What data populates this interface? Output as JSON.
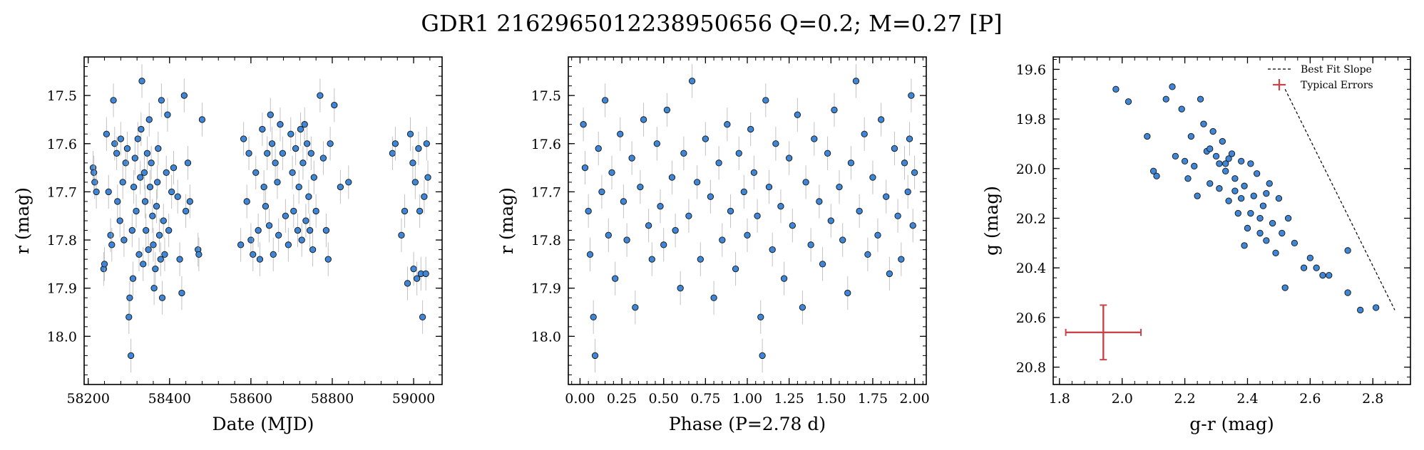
{
  "title": "GDR1 2162965012238950656  Q=0.2; M=0.27 [P]",
  "colors": {
    "point": "#3f87d6",
    "point_edge": "#111111",
    "errorbar": "#a9a9a9",
    "typical": "#c9434a",
    "slope": "#000000"
  },
  "chart_data": [
    {
      "type": "scatter",
      "panel": "light-curve",
      "xlabel": "Date (MJD)",
      "ylabel": "r (mag)",
      "xlim": [
        58190,
        59070
      ],
      "ylim": [
        18.1,
        17.42
      ],
      "y_inverted": true,
      "xticks": [
        "58200",
        "58400",
        "58600",
        "58800",
        "59000"
      ],
      "yticks": [
        "17.5",
        "17.6",
        "17.7",
        "17.8",
        "17.9",
        "18.0"
      ],
      "y_error": 0.035,
      "points": [
        [
          58212,
          17.65
        ],
        [
          58214,
          17.66
        ],
        [
          58216,
          17.68
        ],
        [
          58220,
          17.7
        ],
        [
          58238,
          17.86
        ],
        [
          58240,
          17.85
        ],
        [
          58245,
          17.58
        ],
        [
          58250,
          17.7
        ],
        [
          58255,
          17.79
        ],
        [
          58258,
          17.81
        ],
        [
          58262,
          17.51
        ],
        [
          58265,
          17.6
        ],
        [
          58270,
          17.62
        ],
        [
          58272,
          17.72
        ],
        [
          58278,
          17.76
        ],
        [
          58280,
          17.59
        ],
        [
          58285,
          17.68
        ],
        [
          58288,
          17.8
        ],
        [
          58292,
          17.64
        ],
        [
          58296,
          17.61
        ],
        [
          58300,
          17.96
        ],
        [
          58302,
          17.92
        ],
        [
          58305,
          18.04
        ],
        [
          58308,
          17.78
        ],
        [
          58310,
          17.88
        ],
        [
          58312,
          17.69
        ],
        [
          58315,
          17.63
        ],
        [
          58318,
          17.74
        ],
        [
          58322,
          17.59
        ],
        [
          58325,
          17.83
        ],
        [
          58328,
          17.67
        ],
        [
          58330,
          17.57
        ],
        [
          58332,
          17.47
        ],
        [
          58335,
          17.85
        ],
        [
          58338,
          17.66
        ],
        [
          58340,
          17.72
        ],
        [
          58342,
          17.78
        ],
        [
          58345,
          17.62
        ],
        [
          58348,
          17.82
        ],
        [
          58350,
          17.55
        ],
        [
          58352,
          17.69
        ],
        [
          58355,
          17.64
        ],
        [
          58358,
          17.75
        ],
        [
          58360,
          17.81
        ],
        [
          58362,
          17.9
        ],
        [
          58365,
          17.86
        ],
        [
          58368,
          17.73
        ],
        [
          58370,
          17.68
        ],
        [
          58372,
          17.61
        ],
        [
          58375,
          17.79
        ],
        [
          58378,
          17.84
        ],
        [
          58380,
          17.51
        ],
        [
          58382,
          17.92
        ],
        [
          58385,
          17.76
        ],
        [
          58388,
          17.83
        ],
        [
          58392,
          17.66
        ],
        [
          58395,
          17.54
        ],
        [
          58398,
          17.78
        ],
        [
          58405,
          17.7
        ],
        [
          58410,
          17.65
        ],
        [
          58420,
          17.71
        ],
        [
          58425,
          17.84
        ],
        [
          58430,
          17.91
        ],
        [
          58436,
          17.5
        ],
        [
          58440,
          17.74
        ],
        [
          58445,
          17.64
        ],
        [
          58450,
          17.72
        ],
        [
          58470,
          17.82
        ],
        [
          58472,
          17.83
        ],
        [
          58480,
          17.55
        ],
        [
          58575,
          17.81
        ],
        [
          58582,
          17.59
        ],
        [
          58590,
          17.72
        ],
        [
          58595,
          17.62
        ],
        [
          58600,
          17.8
        ],
        [
          58605,
          17.83
        ],
        [
          58612,
          17.66
        ],
        [
          58618,
          17.78
        ],
        [
          58622,
          17.84
        ],
        [
          58628,
          17.57
        ],
        [
          58632,
          17.69
        ],
        [
          58636,
          17.73
        ],
        [
          58640,
          17.62
        ],
        [
          58645,
          17.77
        ],
        [
          58648,
          17.54
        ],
        [
          58652,
          17.6
        ],
        [
          58655,
          17.83
        ],
        [
          58660,
          17.64
        ],
        [
          58665,
          17.68
        ],
        [
          58668,
          17.79
        ],
        [
          58672,
          17.56
        ],
        [
          58678,
          17.62
        ],
        [
          58685,
          17.75
        ],
        [
          58692,
          17.81
        ],
        [
          58698,
          17.58
        ],
        [
          58702,
          17.66
        ],
        [
          58705,
          17.74
        ],
        [
          58710,
          17.61
        ],
        [
          58715,
          17.78
        ],
        [
          58718,
          17.69
        ],
        [
          58722,
          17.57
        ],
        [
          58725,
          17.8
        ],
        [
          58728,
          17.64
        ],
        [
          58732,
          17.56
        ],
        [
          58735,
          17.76
        ],
        [
          58738,
          17.6
        ],
        [
          58742,
          17.71
        ],
        [
          58745,
          17.78
        ],
        [
          58748,
          17.62
        ],
        [
          58752,
          17.82
        ],
        [
          58755,
          17.67
        ],
        [
          58760,
          17.74
        ],
        [
          58770,
          17.5
        ],
        [
          58778,
          17.63
        ],
        [
          58785,
          17.78
        ],
        [
          58790,
          17.84
        ],
        [
          58795,
          17.6
        ],
        [
          58805,
          17.52
        ],
        [
          58820,
          17.69
        ],
        [
          58840,
          17.68
        ],
        [
          58948,
          17.62
        ],
        [
          58955,
          17.6
        ],
        [
          58970,
          17.79
        ],
        [
          58978,
          17.74
        ],
        [
          58985,
          17.89
        ],
        [
          58992,
          17.58
        ],
        [
          58998,
          17.64
        ],
        [
          59000,
          17.86
        ],
        [
          59004,
          17.68
        ],
        [
          59008,
          17.88
        ],
        [
          59012,
          17.61
        ],
        [
          59015,
          17.74
        ],
        [
          59018,
          17.87
        ],
        [
          59022,
          17.96
        ],
        [
          59026,
          17.71
        ],
        [
          59030,
          17.87
        ],
        [
          59032,
          17.6
        ],
        [
          59035,
          17.67
        ]
      ]
    },
    {
      "type": "scatter",
      "panel": "phase-folded",
      "xlabel": "Phase (P=2.78 d)",
      "ylabel": "r (mag)",
      "xlim": [
        -0.07,
        2.07
      ],
      "ylim": [
        18.1,
        17.42
      ],
      "y_inverted": true,
      "xticks": [
        "0.00",
        "0.25",
        "0.50",
        "0.75",
        "1.00",
        "1.25",
        "1.50",
        "1.75",
        "2.00"
      ],
      "yticks": [
        "17.5",
        "17.6",
        "17.7",
        "17.8",
        "17.9",
        "18.0"
      ],
      "y_error": 0.035,
      "points": [
        [
          0.02,
          17.56
        ],
        [
          0.03,
          17.65
        ],
        [
          0.05,
          17.74
        ],
        [
          0.06,
          17.83
        ],
        [
          0.08,
          17.96
        ],
        [
          0.09,
          18.04
        ],
        [
          0.11,
          17.61
        ],
        [
          0.13,
          17.7
        ],
        [
          0.15,
          17.51
        ],
        [
          0.17,
          17.79
        ],
        [
          0.19,
          17.66
        ],
        [
          0.21,
          17.88
        ],
        [
          0.24,
          17.58
        ],
        [
          0.26,
          17.72
        ],
        [
          0.28,
          17.8
        ],
        [
          0.31,
          17.63
        ],
        [
          0.33,
          17.94
        ],
        [
          0.36,
          17.69
        ],
        [
          0.38,
          17.55
        ],
        [
          0.41,
          17.77
        ],
        [
          0.43,
          17.84
        ],
        [
          0.46,
          17.6
        ],
        [
          0.48,
          17.73
        ],
        [
          0.5,
          17.81
        ],
        [
          0.52,
          17.53
        ],
        [
          0.55,
          17.67
        ],
        [
          0.57,
          17.78
        ],
        [
          0.6,
          17.9
        ],
        [
          0.62,
          17.62
        ],
        [
          0.65,
          17.75
        ],
        [
          0.67,
          17.47
        ],
        [
          0.7,
          17.68
        ],
        [
          0.72,
          17.84
        ],
        [
          0.75,
          17.59
        ],
        [
          0.78,
          17.71
        ],
        [
          0.8,
          17.92
        ],
        [
          0.83,
          17.64
        ],
        [
          0.85,
          17.8
        ],
        [
          0.88,
          17.56
        ],
        [
          0.9,
          17.74
        ],
        [
          0.93,
          17.86
        ],
        [
          0.95,
          17.62
        ],
        [
          0.98,
          17.7
        ],
        [
          1.0,
          17.79
        ],
        [
          1.02,
          17.57
        ],
        [
          1.04,
          17.66
        ],
        [
          1.06,
          17.75
        ],
        [
          1.08,
          17.96
        ],
        [
          1.09,
          18.04
        ],
        [
          1.11,
          17.51
        ],
        [
          1.13,
          17.69
        ],
        [
          1.15,
          17.82
        ],
        [
          1.17,
          17.6
        ],
        [
          1.2,
          17.73
        ],
        [
          1.22,
          17.88
        ],
        [
          1.25,
          17.63
        ],
        [
          1.27,
          17.77
        ],
        [
          1.3,
          17.54
        ],
        [
          1.33,
          17.94
        ],
        [
          1.35,
          17.68
        ],
        [
          1.38,
          17.81
        ],
        [
          1.4,
          17.59
        ],
        [
          1.43,
          17.72
        ],
        [
          1.45,
          17.85
        ],
        [
          1.48,
          17.62
        ],
        [
          1.5,
          17.76
        ],
        [
          1.52,
          17.53
        ],
        [
          1.55,
          17.69
        ],
        [
          1.57,
          17.8
        ],
        [
          1.6,
          17.91
        ],
        [
          1.62,
          17.64
        ],
        [
          1.65,
          17.47
        ],
        [
          1.67,
          17.74
        ],
        [
          1.7,
          17.58
        ],
        [
          1.72,
          17.83
        ],
        [
          1.75,
          17.67
        ],
        [
          1.78,
          17.79
        ],
        [
          1.8,
          17.55
        ],
        [
          1.83,
          17.71
        ],
        [
          1.85,
          17.87
        ],
        [
          1.88,
          17.61
        ],
        [
          1.9,
          17.75
        ],
        [
          1.92,
          17.84
        ],
        [
          1.94,
          17.64
        ],
        [
          1.96,
          17.7
        ],
        [
          1.97,
          17.59
        ],
        [
          1.98,
          17.5
        ],
        [
          1.99,
          17.77
        ],
        [
          2.0,
          17.66
        ]
      ]
    },
    {
      "type": "scatter",
      "panel": "color-magnitude",
      "xlabel": "g-r (mag)",
      "ylabel": "g (mag)",
      "xlim": [
        1.78,
        2.92
      ],
      "ylim": [
        20.87,
        19.55
      ],
      "y_inverted": true,
      "xticks": [
        "1.8",
        "2.0",
        "2.2",
        "2.4",
        "2.6",
        "2.8"
      ],
      "yticks": [
        "19.6",
        "19.8",
        "20.0",
        "20.2",
        "20.4",
        "20.6",
        "20.8"
      ],
      "legend": {
        "position": "top-right",
        "entries": [
          "Best Fit Slope",
          "Typical Errors"
        ]
      },
      "best_fit_slope": [
        [
          2.52,
          19.68
        ],
        [
          2.87,
          20.57
        ]
      ],
      "typical_error": {
        "x": 1.94,
        "y": 20.66,
        "xerr": 0.12,
        "yerr": 0.11
      },
      "points": [
        [
          1.98,
          19.68
        ],
        [
          2.02,
          19.73
        ],
        [
          2.08,
          19.87
        ],
        [
          2.1,
          20.01
        ],
        [
          2.11,
          20.03
        ],
        [
          2.14,
          19.72
        ],
        [
          2.16,
          19.67
        ],
        [
          2.17,
          19.95
        ],
        [
          2.19,
          19.76
        ],
        [
          2.2,
          19.97
        ],
        [
          2.21,
          20.04
        ],
        [
          2.22,
          19.87
        ],
        [
          2.23,
          19.99
        ],
        [
          2.24,
          20.11
        ],
        [
          2.25,
          19.72
        ],
        [
          2.26,
          19.82
        ],
        [
          2.27,
          19.93
        ],
        [
          2.28,
          20.06
        ],
        [
          2.29,
          19.85
        ],
        [
          2.3,
          19.95
        ],
        [
          2.31,
          20.08
        ],
        [
          2.32,
          19.89
        ],
        [
          2.33,
          20.01
        ],
        [
          2.34,
          20.13
        ],
        [
          2.35,
          19.94
        ],
        [
          2.36,
          20.04
        ],
        [
          2.37,
          20.18
        ],
        [
          2.38,
          19.97
        ],
        [
          2.39,
          20.07
        ],
        [
          2.4,
          20.24
        ],
        [
          2.41,
          19.98
        ],
        [
          2.42,
          20.11
        ],
        [
          2.43,
          20.02
        ],
        [
          2.44,
          20.2
        ],
        [
          2.45,
          20.15
        ],
        [
          2.46,
          20.29
        ],
        [
          2.47,
          20.06
        ],
        [
          2.48,
          20.22
        ],
        [
          2.49,
          20.34
        ],
        [
          2.5,
          20.12
        ],
        [
          2.51,
          20.26
        ],
        [
          2.52,
          20.48
        ],
        [
          2.53,
          20.2
        ],
        [
          2.55,
          20.3
        ],
        [
          2.58,
          20.4
        ],
        [
          2.6,
          20.36
        ],
        [
          2.62,
          20.4
        ],
        [
          2.64,
          20.43
        ],
        [
          2.66,
          20.43
        ],
        [
          2.72,
          20.33
        ],
        [
          2.72,
          20.5
        ],
        [
          2.76,
          20.57
        ],
        [
          2.81,
          20.56
        ],
        [
          2.34,
          19.96
        ],
        [
          2.38,
          20.12
        ],
        [
          2.41,
          20.18
        ],
        [
          2.36,
          20.09
        ],
        [
          2.33,
          19.98
        ],
        [
          2.44,
          20.26
        ],
        [
          2.46,
          20.1
        ],
        [
          2.28,
          19.92
        ],
        [
          2.31,
          19.98
        ],
        [
          2.39,
          20.31
        ]
      ]
    }
  ]
}
